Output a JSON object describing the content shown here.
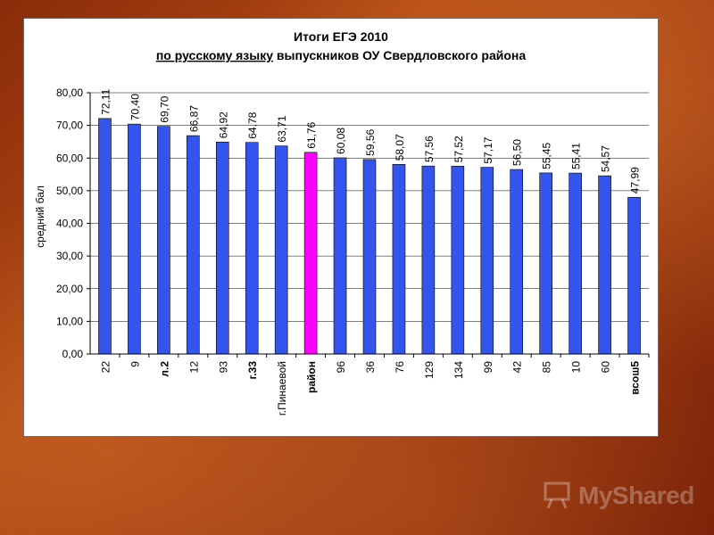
{
  "watermark": "MyShared",
  "chart_data": {
    "type": "bar",
    "title_prefix": "Итоги ЕГЭ 2010",
    "title_underlined": "по русскому языку",
    "title_rest": " выпускников ОУ Свердловского района",
    "ylabel": "средний бал",
    "ylim": [
      0,
      80
    ],
    "yticks": [
      "0,00",
      "10,00",
      "20,00",
      "30,00",
      "40,00",
      "50,00",
      "60,00",
      "70,00",
      "80,00"
    ],
    "categories": [
      "22",
      "9",
      "л.2",
      "12",
      "93",
      "г.33",
      "г.Пинаевой",
      "район",
      "96",
      "36",
      "76",
      "129",
      "134",
      "99",
      "42",
      "85",
      "10",
      "60",
      "всош5"
    ],
    "values": [
      72.11,
      70.4,
      69.7,
      66.87,
      64.92,
      64.78,
      63.71,
      61.76,
      60.08,
      59.56,
      58.07,
      57.56,
      57.52,
      57.17,
      56.5,
      55.45,
      55.41,
      54.57,
      47.99
    ],
    "value_labels": [
      "72,11",
      "70,40",
      "69,70",
      "66,87",
      "64,92",
      "64,78",
      "63,71",
      "61,76",
      "60,08",
      "59,56",
      "58,07",
      "57,56",
      "57,52",
      "57,17",
      "56,50",
      "55,45",
      "55,41",
      "54,57",
      "47,99"
    ],
    "bold_categories": [
      "л.2",
      "г.33",
      "район",
      "всош5"
    ],
    "highlight_category": "район",
    "bar_color": "#3355ee",
    "highlight_color": "#ff00ff",
    "grid": true,
    "legend": "none"
  }
}
